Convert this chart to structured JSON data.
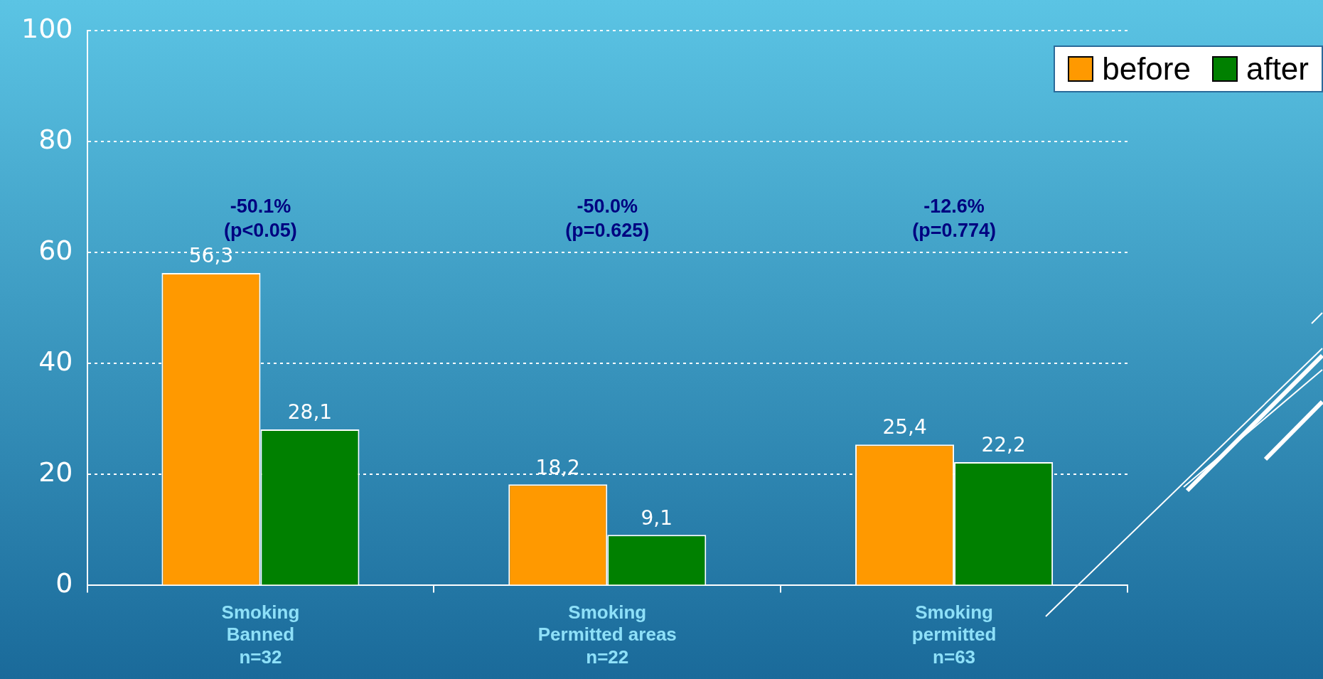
{
  "chart_data": {
    "type": "bar",
    "categories": [
      "Smoking\nBanned\nn=32",
      "Smoking\nPermitted areas\nn=22",
      "Smoking\npermitted\nn=63"
    ],
    "series": [
      {
        "name": "before",
        "color": "#ff9900",
        "values": [
          56.3,
          18.2,
          25.4
        ],
        "value_labels": [
          "56,3",
          "18,2",
          "25,4"
        ]
      },
      {
        "name": "after",
        "color": "#008000",
        "values": [
          28.1,
          9.1,
          22.2
        ],
        "value_labels": [
          "28,1",
          "9,1",
          "22,2"
        ]
      }
    ],
    "ylim": [
      0,
      100
    ],
    "yticks": [
      0,
      20,
      40,
      60,
      80,
      100
    ],
    "grid": "y",
    "legend": "top right",
    "annotations": [
      "-50.1%\n(p<0.05)",
      "-50.0%\n(p=0.625)",
      "-12.6%\n(p=0.774)"
    ]
  }
}
